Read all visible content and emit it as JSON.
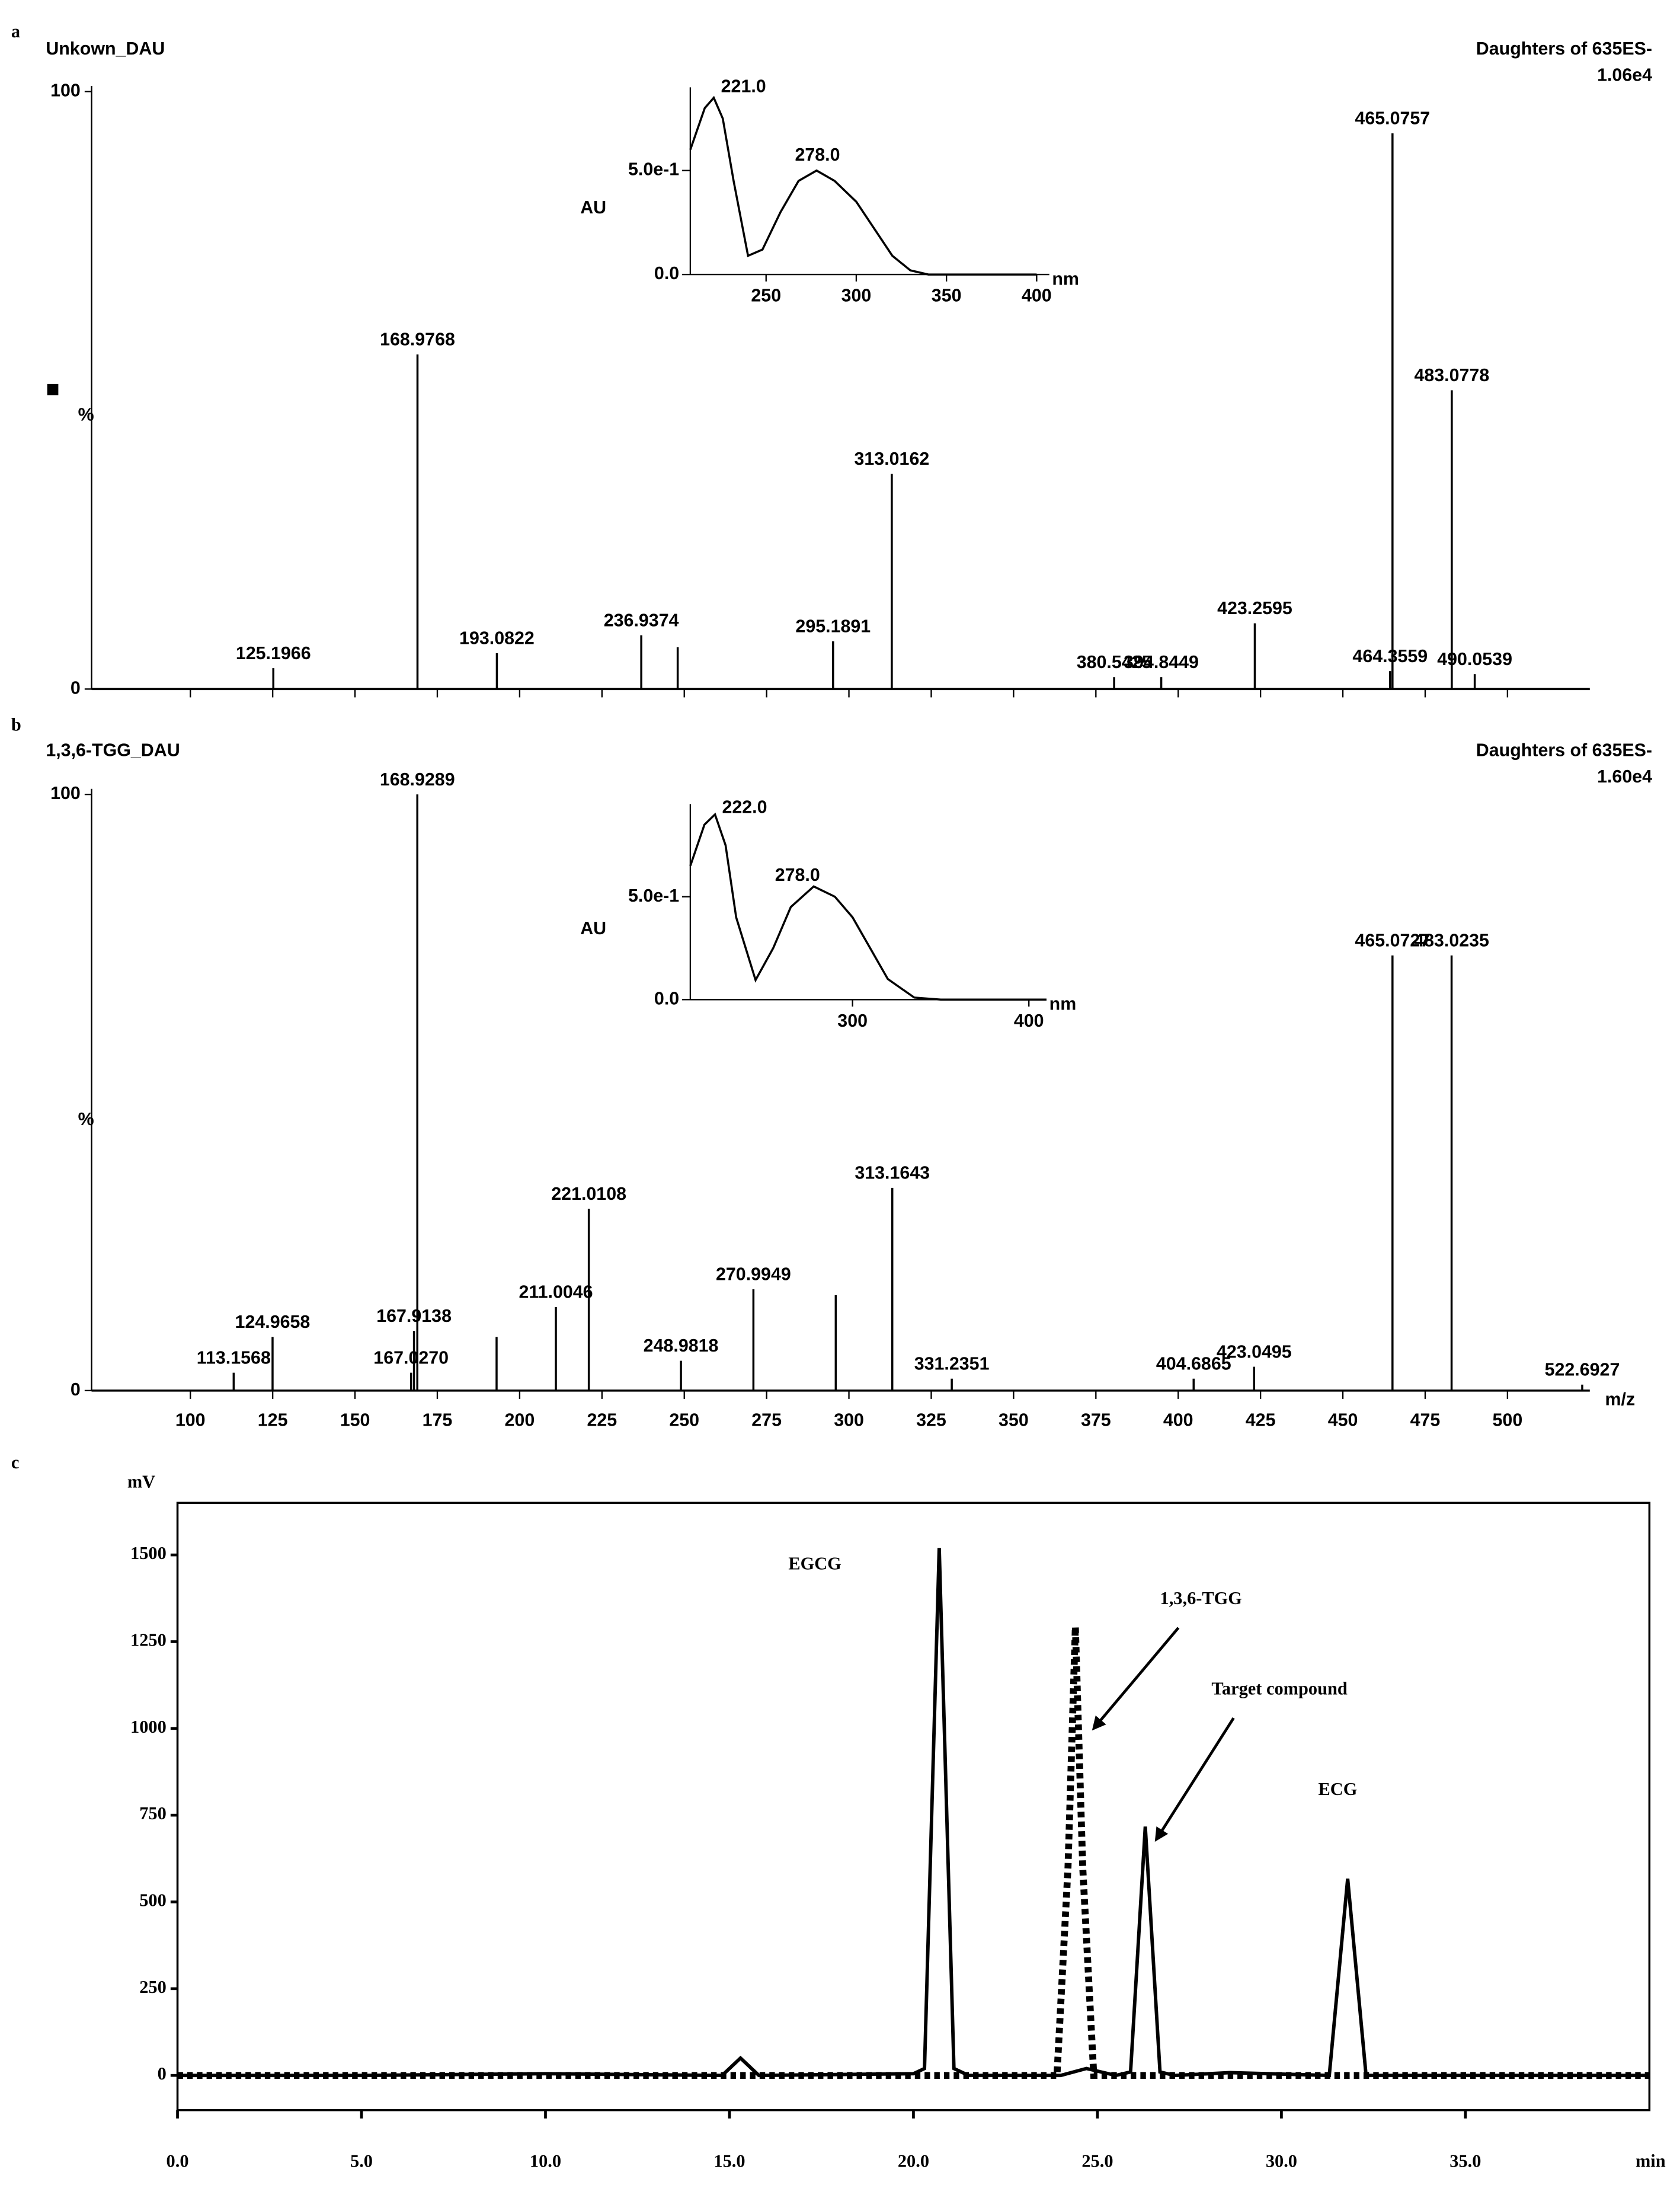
{
  "chart_data": [
    {
      "type": "stem",
      "panel_label": "a",
      "title": "Unkown_DAU",
      "header": "Daughters of 635ES-",
      "scale_label": "1.06e4",
      "ylabel": "%",
      "x": [
        125.1966,
        168.9768,
        193.0822,
        236.9374,
        248,
        295.1891,
        313.0162,
        380.5425,
        394.8449,
        423.2595,
        464.3559,
        465.0757,
        483.0778,
        490.0539
      ],
      "x_labels": [
        "125.1966",
        "168.9768",
        "193.0822",
        "236.9374",
        null,
        "295.1891",
        "313.0162",
        "380.5425",
        "394.8449",
        "423.2595",
        "464.3559",
        "465.0757",
        "483.0778",
        "490.0539"
      ],
      "values": [
        3.5,
        56,
        6,
        9,
        7,
        8,
        36,
        2,
        2,
        11,
        3,
        93,
        50,
        2.5
      ],
      "color": "#000000",
      "xlim": [
        70,
        525
      ],
      "ylim": [
        0,
        100
      ],
      "xticks": [
        100,
        125,
        150,
        175,
        200,
        225,
        250,
        275,
        300,
        325,
        350,
        375,
        400,
        425,
        450,
        475,
        500
      ],
      "yticks": [
        0,
        100
      ],
      "inset": {
        "type": "line",
        "ylabel": "AU",
        "xlabel": "nm",
        "color": "#000000",
        "x": [
          208,
          212,
          216,
          221,
          226,
          232,
          240,
          248,
          258,
          268,
          278,
          288,
          300,
          310,
          320,
          330,
          340,
          360,
          380,
          400
        ],
        "values": [
          0.6,
          0.7,
          0.8,
          0.85,
          0.75,
          0.45,
          0.09,
          0.12,
          0.3,
          0.45,
          0.5,
          0.45,
          0.35,
          0.22,
          0.09,
          0.02,
          0.0,
          0.0,
          0.0,
          0.0
        ],
        "xlim": [
          208,
          407
        ],
        "ylim": [
          0,
          0.9
        ],
        "xticks": [
          250,
          300,
          350,
          400
        ],
        "yticks": [
          {
            "value": 0,
            "label": "0.0"
          },
          {
            "value": 0.5,
            "label": "5.0e-1"
          }
        ],
        "annotations": [
          {
            "text": "221.0",
            "x": 225,
            "y": 0.9
          },
          {
            "text": "278.0",
            "x": 266,
            "y": 0.57
          }
        ]
      }
    },
    {
      "type": "stem",
      "panel_label": "b",
      "title": "1,3,6-TGG_DAU",
      "header": "Daughters of 635ES-",
      "scale_label": "1.60e4",
      "ylabel": "%",
      "xlabel": "m/z",
      "x": [
        113.1568,
        124.9658,
        167.027,
        167.9138,
        168.9289,
        193,
        211.0046,
        221.0108,
        248.9818,
        270.9949,
        296,
        313.1643,
        331.2351,
        404.6865,
        423.0495,
        465.0727,
        483.0235,
        522.6927
      ],
      "x_labels": [
        "113.1568",
        "124.9658",
        "167.0270",
        "167.9138",
        "168.9289",
        null,
        "211.0046",
        "221.0108",
        "248.9818",
        "270.9949",
        null,
        "313.1643",
        "331.2351",
        "404.6865",
        "423.0495",
        "465.0727",
        "483.0235",
        "522.6927"
      ],
      "values": [
        3,
        9,
        3,
        10,
        100,
        9,
        14,
        30.5,
        5,
        17,
        16,
        34,
        2,
        2,
        4,
        73,
        73,
        1
      ],
      "color": "#000000",
      "xlim": [
        70,
        525
      ],
      "ylim": [
        0,
        100
      ],
      "xticks": [
        100,
        125,
        150,
        175,
        200,
        225,
        250,
        275,
        300,
        325,
        350,
        375,
        400,
        425,
        450,
        475,
        500
      ],
      "yticks": [
        0,
        100
      ],
      "inset": {
        "type": "line",
        "ylabel": "AU",
        "xlabel": "nm",
        "color": "#000000",
        "x": [
          208,
          212,
          216,
          222,
          228,
          234,
          245,
          255,
          265,
          278,
          290,
          300,
          310,
          320,
          335,
          350,
          380,
          410
        ],
        "values": [
          0.65,
          0.75,
          0.85,
          0.9,
          0.75,
          0.4,
          0.095,
          0.25,
          0.45,
          0.55,
          0.5,
          0.4,
          0.25,
          0.1,
          0.01,
          0.0,
          0.0,
          0.0
        ],
        "xlim": [
          208,
          410
        ],
        "ylim": [
          0,
          0.95
        ],
        "xticks": [
          300,
          400
        ],
        "yticks": [
          {
            "value": 0,
            "label": "0.0"
          },
          {
            "value": 0.5,
            "label": "5.0e-1"
          }
        ],
        "annotations": [
          {
            "text": "222.0",
            "x": 226,
            "y": 0.93
          },
          {
            "text": "278.0",
            "x": 256,
            "y": 0.6
          }
        ]
      }
    },
    {
      "type": "line",
      "panel_label": "c",
      "ylabel": "mV",
      "xlabel": "min",
      "xlim": [
        0,
        40
      ],
      "ylim": [
        -100,
        1650
      ],
      "xticks": [
        {
          "value": 0,
          "label": "0.0"
        },
        {
          "value": 5,
          "label": "5.0"
        },
        {
          "value": 10,
          "label": "10.0"
        },
        {
          "value": 15,
          "label": "15.0"
        },
        {
          "value": 20,
          "label": "20.0"
        },
        {
          "value": 25,
          "label": "25.0"
        },
        {
          "value": 30,
          "label": "30.0"
        },
        {
          "value": 35,
          "label": "35.0"
        }
      ],
      "yticks": [
        0,
        250,
        500,
        750,
        1000,
        1250,
        1500
      ],
      "series": [
        {
          "color": "#000000",
          "dashed": false,
          "x": [
            0,
            5,
            10,
            14.8,
            15.3,
            15.8,
            20,
            20.3,
            20.7,
            21.1,
            21.5,
            24,
            24.7,
            25.5,
            25.9,
            26.3,
            26.7,
            27.1,
            28.6,
            31.3,
            31.8,
            32.3,
            35,
            40
          ],
          "values": [
            0,
            0,
            5,
            0,
            50,
            0,
            5,
            20,
            1520,
            20,
            0,
            0,
            20,
            0,
            10,
            717,
            10,
            0,
            8,
            0,
            567,
            0,
            0,
            0
          ]
        },
        {
          "color": "#000000",
          "dashed": true,
          "x": [
            0,
            23.9,
            24.2,
            24.4,
            24.6,
            24.9,
            40
          ],
          "values": [
            0,
            0,
            600,
            1293,
            600,
            0,
            0
          ]
        }
      ],
      "annotations": [
        {
          "text": "EGCG",
          "x": 16.6,
          "y": 1470
        },
        {
          "text": "1,3,6-TGG",
          "x": 26.7,
          "y": 1370,
          "arrow": [
            27.2,
            1290,
            24.9,
            1000
          ]
        },
        {
          "text": "Target compound",
          "x": 28.1,
          "y": 1110,
          "arrow": [
            28.7,
            1030,
            26.6,
            680
          ]
        },
        {
          "text": "ECG",
          "x": 31.0,
          "y": 820
        }
      ]
    }
  ]
}
